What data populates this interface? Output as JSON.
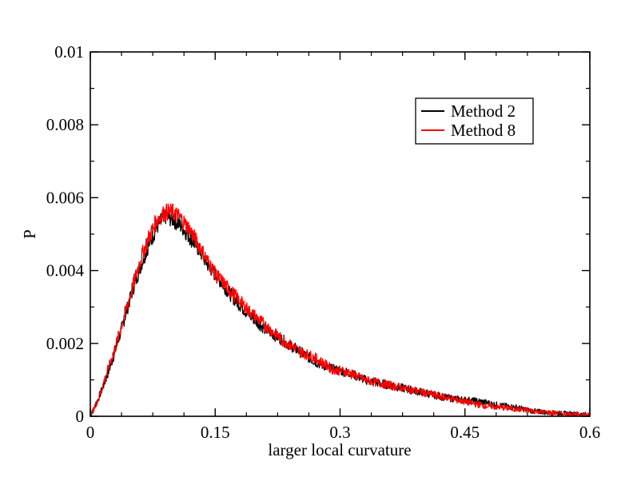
{
  "chart_data": {
    "type": "line",
    "title": "",
    "xlabel": "larger local curvature",
    "ylabel": "P",
    "xlim": [
      0,
      0.6
    ],
    "ylim": [
      0,
      0.01
    ],
    "x_ticks": [
      "0",
      "0.15",
      "0.3",
      "0.45",
      "0.6"
    ],
    "y_ticks": [
      "0",
      "0.002",
      "0.004",
      "0.006",
      "0.008",
      "0.01"
    ],
    "grid": false,
    "legend_position": "top-right",
    "series": [
      {
        "name": "Method 2",
        "color": "#000000",
        "x": [
          0.0,
          0.01,
          0.02,
          0.03,
          0.04,
          0.05,
          0.06,
          0.07,
          0.08,
          0.09,
          0.1,
          0.11,
          0.12,
          0.13,
          0.14,
          0.15,
          0.17,
          0.19,
          0.21,
          0.23,
          0.25,
          0.27,
          0.29,
          0.31,
          0.33,
          0.35,
          0.37,
          0.39,
          0.41,
          0.43,
          0.45,
          0.47,
          0.49,
          0.51,
          0.53,
          0.55,
          0.57,
          0.6
        ],
        "y": [
          0.0,
          0.0005,
          0.0011,
          0.0018,
          0.0026,
          0.0034,
          0.0041,
          0.0047,
          0.0052,
          0.0055,
          0.0054,
          0.0052,
          0.0049,
          0.0046,
          0.0042,
          0.0039,
          0.0033,
          0.0028,
          0.0024,
          0.0021,
          0.0018,
          0.0015,
          0.0013,
          0.0012,
          0.001,
          0.0009,
          0.0008,
          0.0007,
          0.0006,
          0.0005,
          0.00045,
          0.0004,
          0.0003,
          0.00025,
          0.00015,
          0.0001,
          8e-05,
          5e-05
        ]
      },
      {
        "name": "Method 8",
        "color": "#ff0000",
        "x": [
          0.0,
          0.01,
          0.02,
          0.03,
          0.04,
          0.05,
          0.06,
          0.07,
          0.08,
          0.09,
          0.1,
          0.11,
          0.12,
          0.13,
          0.14,
          0.15,
          0.17,
          0.19,
          0.21,
          0.23,
          0.25,
          0.27,
          0.29,
          0.31,
          0.33,
          0.35,
          0.37,
          0.39,
          0.41,
          0.43,
          0.45,
          0.47,
          0.49,
          0.51,
          0.53,
          0.55,
          0.57,
          0.6
        ],
        "y": [
          0.0,
          0.0005,
          0.0012,
          0.0019,
          0.0027,
          0.0035,
          0.0043,
          0.0049,
          0.0054,
          0.0056,
          0.0056,
          0.0054,
          0.0051,
          0.0047,
          0.0043,
          0.0039,
          0.0034,
          0.0029,
          0.0025,
          0.0021,
          0.0018,
          0.0016,
          0.0013,
          0.0012,
          0.001,
          0.0009,
          0.0008,
          0.0007,
          0.0006,
          0.0005,
          0.0004,
          0.0003,
          0.00025,
          0.0002,
          0.00015,
          0.0001,
          7e-05,
          4e-05
        ]
      }
    ]
  }
}
